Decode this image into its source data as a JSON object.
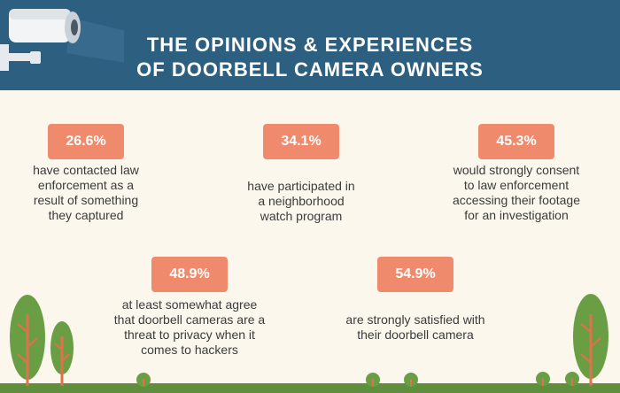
{
  "header": {
    "title_line1": "THE OPINIONS & EXPERIENCES",
    "title_line2": "OF DOORBELL CAMERA OWNERS"
  },
  "stats": [
    {
      "value": "26.6%",
      "lines": [
        "have contacted law",
        "enforcement as a",
        "result of something",
        "they captured"
      ]
    },
    {
      "value": "34.1%",
      "lines": [
        "have participated in",
        "a neighborhood",
        "watch program"
      ]
    },
    {
      "value": "45.3%",
      "lines": [
        "would strongly consent",
        "to law enforcement",
        "accessing their footage",
        "for an investigation"
      ]
    },
    {
      "value": "48.9%",
      "lines": [
        "at least somewhat agree",
        "that doorbell cameras are a",
        "threat to privacy when it",
        "comes to hackers"
      ]
    },
    {
      "value": "54.9%",
      "lines": [
        "are strongly satisfied with",
        "their doorbell camera"
      ]
    }
  ],
  "colors": {
    "header": "#2d6080",
    "background": "#fbf7ec",
    "badge": "#f08a6c",
    "tree": "#6a9e45",
    "trunk": "#e0714a",
    "ground": "#5f8f3d"
  },
  "icons": [
    "security-camera-icon",
    "tree-icon",
    "bush-icon"
  ]
}
